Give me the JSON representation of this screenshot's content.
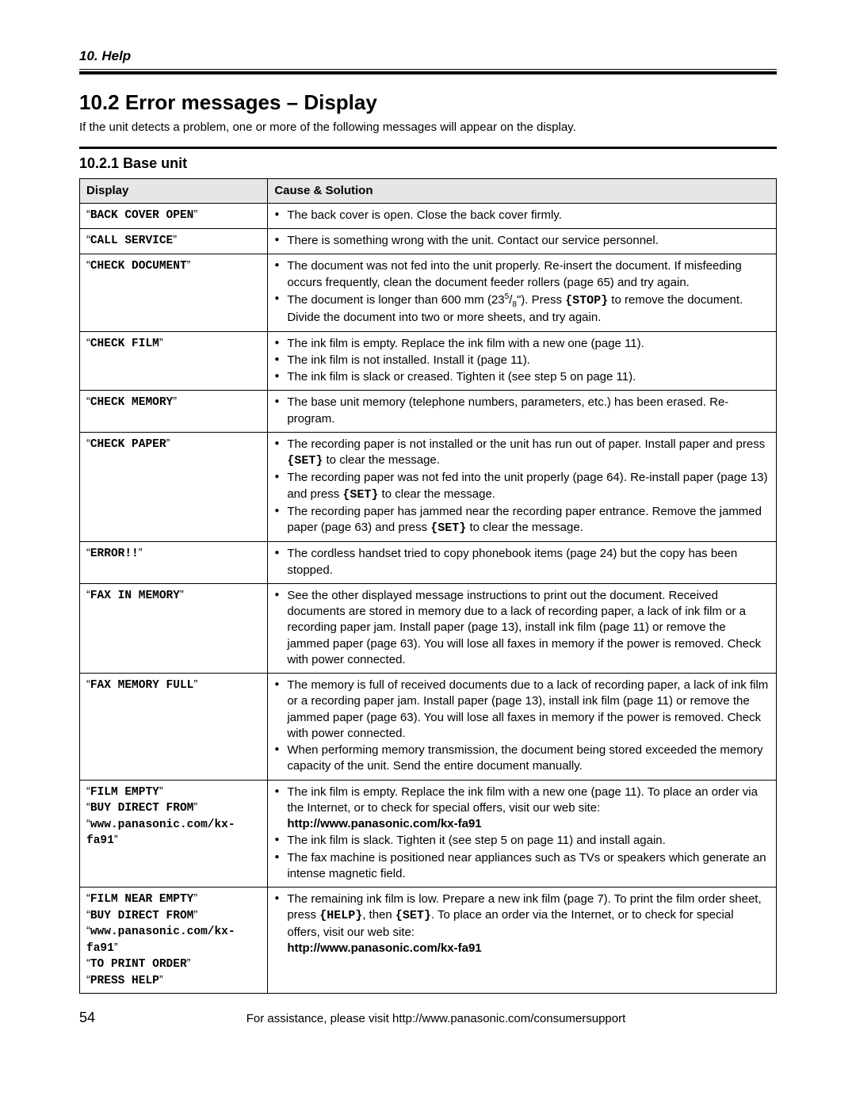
{
  "page": {
    "chapter_label": "10. Help",
    "section_number": "10.2",
    "section_title": "Error messages – Display",
    "section_intro": "If the unit detects a problem, one or more of the following messages will appear on the display.",
    "subsection_number": "10.2.1",
    "subsection_title": "Base unit",
    "page_number": "54",
    "footer_text": "For assistance, please visit http://www.panasonic.com/consumersupport"
  },
  "table": {
    "header_display": "Display",
    "header_solution": "Cause & Solution"
  },
  "rows": {
    "r0": {
      "display": [
        "BACK COVER OPEN"
      ],
      "sol": [
        "The back cover is open. Close the back cover firmly."
      ]
    },
    "r1": {
      "display": [
        "CALL SERVICE"
      ],
      "sol": [
        "There is something wrong with the unit. Contact our service personnel."
      ]
    },
    "r2": {
      "display": [
        "CHECK DOCUMENT"
      ],
      "sol": [
        "The document was not fed into the unit properly. Re-insert the document. If misfeeding occurs frequently, clean the document feeder rollers (page 65) and try again.",
        "The document is longer than 600 mm (23<span class=\"frac-sup\">5</span>/<span class=\"frac-sub\">8</span>\"). Press <span class=\"keycap\">{STOP}</span> to remove the document. Divide the document into two or more sheets, and try again."
      ]
    },
    "r3": {
      "display": [
        "CHECK FILM"
      ],
      "sol": [
        "The ink film is empty. Replace the ink film with a new one (page 11).",
        "The ink film is not installed. Install it (page 11).",
        "The ink film is slack or creased. Tighten it (see step 5 on page 11)."
      ]
    },
    "r4": {
      "display": [
        "CHECK MEMORY"
      ],
      "sol": [
        "The base unit memory (telephone numbers, parameters, etc.) has been erased. Re-program."
      ]
    },
    "r5": {
      "display": [
        "CHECK PAPER"
      ],
      "sol": [
        "The recording paper is not installed or the unit has run out of paper. Install paper and press <span class=\"keycap\">{SET}</span> to clear the message.",
        "The recording paper was not fed into the unit properly (page 64). Re-install paper (page 13) and press <span class=\"keycap\">{SET}</span> to clear the message.",
        "The recording paper has jammed near the recording paper entrance. Remove the jammed paper (page 63) and press <span class=\"keycap\">{SET}</span> to clear the message."
      ]
    },
    "r6": {
      "display": [
        "ERROR!!"
      ],
      "sol": [
        "The cordless handset tried to copy phonebook items (page 24) but the copy has been stopped."
      ]
    },
    "r7": {
      "display": [
        "FAX IN MEMORY"
      ],
      "sol": [
        "See the other displayed message instructions to print out the document. Received documents are stored in memory due to a lack of recording paper, a lack of ink film or a recording paper jam. Install paper (page 13), install ink film (page 11) or remove the jammed paper (page 63). You will lose all faxes in memory if the power is removed. Check with power connected."
      ]
    },
    "r8": {
      "display": [
        "FAX MEMORY FULL"
      ],
      "sol": [
        "The memory is full of received documents due to a lack of recording paper, a lack of ink film or a recording paper jam. Install paper (page 13), install ink film (page 11) or remove the jammed paper (page 63). You will lose all faxes in memory if the power is removed. Check with power connected.",
        "When performing memory transmission, the document being stored exceeded the memory capacity of the unit. Send the entire document manually."
      ]
    },
    "r9": {
      "display": [
        "FILM EMPTY",
        "BUY DIRECT FROM",
        "www.panasonic.com/kx-fa91"
      ],
      "sol": [
        "The ink film is empty. Replace the ink film with a new one (page 11). To place an order via the Internet, or to check for special offers, visit our web site: <span class=\"bold\">http://www.panasonic.com/kx-fa91</span>",
        "The ink film is slack. Tighten it (see step 5 on page 11) and install again.",
        "The fax machine is positioned near appliances such as TVs or speakers which generate an intense magnetic field."
      ]
    },
    "r10": {
      "display": [
        "FILM NEAR EMPTY",
        "BUY DIRECT FROM",
        "www.panasonic.com/kx-fa91",
        "TO PRINT ORDER",
        "PRESS HELP"
      ],
      "sol": [
        "The remaining ink film is low. Prepare a new ink film (page 7). To print the film order sheet, press <span class=\"keycap\">{HELP}</span>, then <span class=\"keycap\">{SET}</span>. To place an order via the Internet, or to check for special offers, visit our web site:<br><span class=\"bold\">http://www.panasonic.com/kx-fa91</span>"
      ]
    }
  }
}
